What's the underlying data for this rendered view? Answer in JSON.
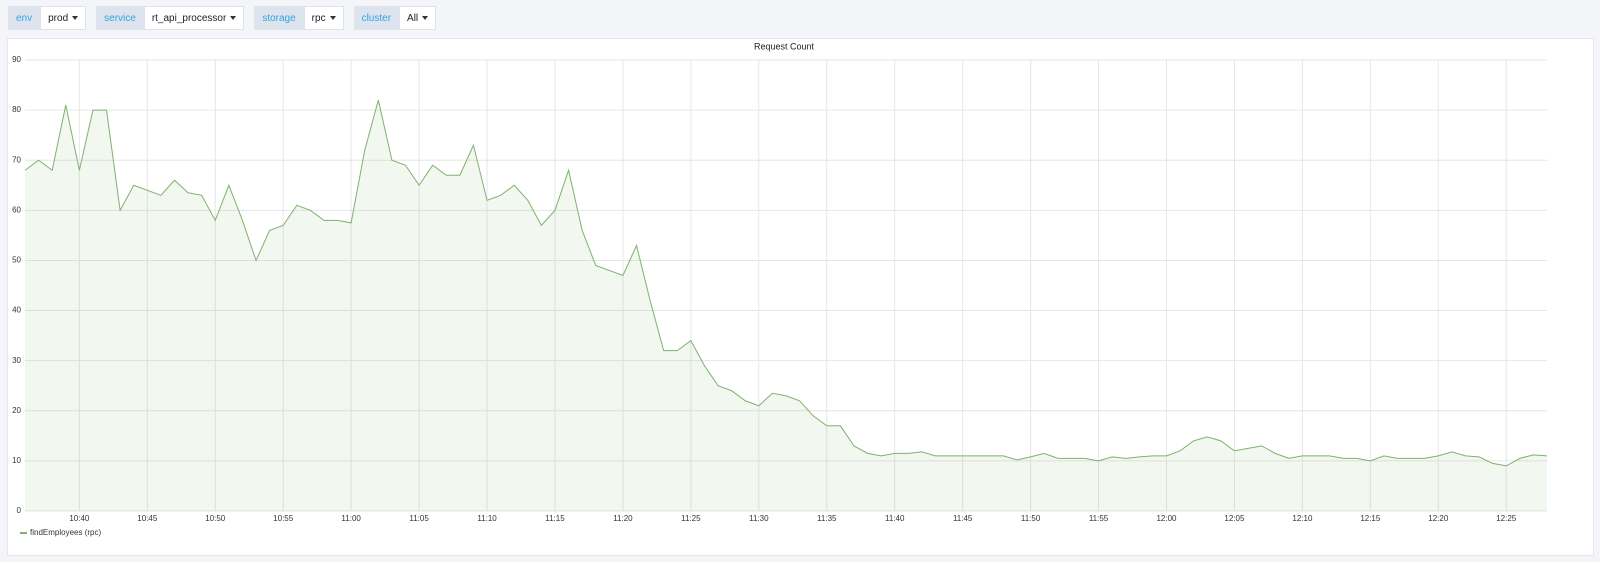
{
  "variables": [
    {
      "label": "env",
      "value": "prod"
    },
    {
      "label": "service",
      "value": "rt_api_processor"
    },
    {
      "label": "storage",
      "value": "rpc"
    },
    {
      "label": "cluster",
      "value": "All"
    }
  ],
  "chart_data": {
    "type": "line",
    "title": "Request Count",
    "x": [
      "10:36",
      "10:37",
      "10:38",
      "10:39",
      "10:40",
      "10:41",
      "10:42",
      "10:43",
      "10:44",
      "10:45",
      "10:46",
      "10:47",
      "10:48",
      "10:49",
      "10:50",
      "10:51",
      "10:52",
      "10:53",
      "10:54",
      "10:55",
      "10:56",
      "10:57",
      "10:58",
      "10:59",
      "11:00",
      "11:01",
      "11:02",
      "11:03",
      "11:04",
      "11:05",
      "11:06",
      "11:07",
      "11:08",
      "11:09",
      "11:10",
      "11:11",
      "11:12",
      "11:13",
      "11:14",
      "11:15",
      "11:16",
      "11:17",
      "11:18",
      "11:19",
      "11:20",
      "11:21",
      "11:22",
      "11:23",
      "11:24",
      "11:25",
      "11:26",
      "11:27",
      "11:28",
      "11:29",
      "11:30",
      "11:31",
      "11:32",
      "11:33",
      "11:34",
      "11:35",
      "11:36",
      "11:37",
      "11:38",
      "11:39",
      "11:40",
      "11:41",
      "11:42",
      "11:43",
      "11:44",
      "11:45",
      "11:46",
      "11:47",
      "11:48",
      "11:49",
      "11:50",
      "11:51",
      "11:52",
      "11:53",
      "11:54",
      "11:55",
      "11:56",
      "11:57",
      "11:58",
      "11:59",
      "12:00",
      "12:01",
      "12:02",
      "12:03",
      "12:04",
      "12:05",
      "12:06",
      "12:07",
      "12:08",
      "12:09",
      "12:10",
      "12:11",
      "12:12",
      "12:13",
      "12:14",
      "12:15",
      "12:16",
      "12:17",
      "12:18",
      "12:19",
      "12:20",
      "12:21",
      "12:22",
      "12:23",
      "12:24",
      "12:25",
      "12:26",
      "12:27",
      "12:28"
    ],
    "series": [
      {
        "name": "findEmployees (rpc)",
        "color": "#7eb26d",
        "values": [
          68,
          70,
          68,
          81,
          68,
          80,
          80,
          60,
          65,
          64,
          63,
          66,
          63.5,
          63,
          58,
          65,
          58,
          50,
          56,
          57,
          61,
          60,
          58,
          58,
          57.5,
          72,
          82,
          70,
          69,
          65,
          69,
          67,
          67,
          73,
          62,
          63,
          65,
          62,
          57,
          60,
          68,
          56,
          49,
          48,
          47,
          53,
          42,
          32,
          32,
          34,
          29,
          25,
          24,
          22,
          21,
          23.5,
          23,
          22,
          19,
          17,
          17,
          13,
          11.5,
          11,
          11.5,
          11.5,
          11.8,
          11,
          11,
          11,
          11,
          11,
          11,
          10.2,
          10.8,
          11.5,
          10.5,
          10.5,
          10.5,
          10,
          10.8,
          10.5,
          10.8,
          11,
          11,
          12,
          14,
          14.8,
          14,
          12,
          12.5,
          13,
          11.5,
          10.5,
          11,
          11,
          11,
          10.5,
          10.5,
          10,
          11,
          10.5,
          10.5,
          10.5,
          11,
          11.8,
          11,
          10.8,
          9.5,
          9,
          10.5,
          11.2,
          11
        ]
      }
    ],
    "xlim": [
      "10:36",
      "12:28"
    ],
    "xticks": [
      "10:40",
      "10:45",
      "10:50",
      "10:55",
      "11:00",
      "11:05",
      "11:10",
      "11:15",
      "11:20",
      "11:25",
      "11:30",
      "11:35",
      "11:40",
      "11:45",
      "11:50",
      "11:55",
      "12:00",
      "12:05",
      "12:10",
      "12:15",
      "12:20",
      "12:25"
    ],
    "ylim": [
      0,
      90
    ],
    "yticks": [
      0,
      10,
      20,
      30,
      40,
      50,
      60,
      70,
      80,
      90
    ],
    "grid": true,
    "legend": "bottom-left"
  }
}
